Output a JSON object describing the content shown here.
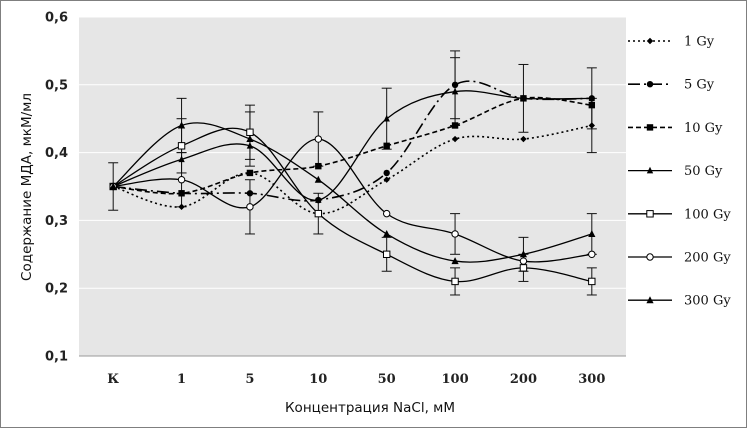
{
  "chart_data": {
    "type": "line",
    "categories": [
      "К",
      "1",
      "5",
      "10",
      "50",
      "100",
      "200",
      "300"
    ],
    "ylabel": "Содержание МДА, мкМ/мл",
    "xlabel": "Концентрация NaCl, мМ",
    "ylim": [
      0.1,
      0.6
    ],
    "yticks": [
      "0,1",
      "0,2",
      "0,3",
      "0,4",
      "0,5",
      "0,6"
    ],
    "grid": "horizontal",
    "legend_position": "right",
    "series": [
      {
        "name": "1 Gy",
        "values": [
          0.35,
          0.32,
          0.37,
          0.31,
          0.36,
          0.42,
          0.42,
          0.44
        ],
        "errors": [
          0,
          0,
          0,
          0,
          0,
          0,
          0,
          0.04
        ],
        "style": "dotted",
        "marker": "diamond"
      },
      {
        "name": "5 Gy",
        "values": [
          0.35,
          0.34,
          0.34,
          0.33,
          0.37,
          0.5,
          0.48,
          0.48
        ],
        "errors": [
          0,
          0,
          0,
          0,
          0,
          0.05,
          0,
          0
        ],
        "style": "dashdot",
        "marker": "circle-filled"
      },
      {
        "name": "10 Gy",
        "values": [
          0.35,
          0.34,
          0.37,
          0.38,
          0.41,
          0.44,
          0.48,
          0.47
        ],
        "errors": [
          0,
          0,
          0,
          0,
          0,
          0,
          0,
          0
        ],
        "style": "dashed",
        "marker": "square-filled"
      },
      {
        "name": "50 Gy",
        "values": [
          0.35,
          0.39,
          0.41,
          0.33,
          0.45,
          0.49,
          0.48,
          0.48
        ],
        "errors": [
          0,
          0,
          0,
          0,
          0.045,
          0.05,
          0.05,
          0.045
        ],
        "style": "solid",
        "marker": "triangle"
      },
      {
        "name": "100 Gy",
        "values": [
          0.35,
          0.41,
          0.43,
          0.31,
          0.25,
          0.21,
          0.23,
          0.21
        ],
        "errors": [
          0.035,
          0.04,
          0.04,
          0.03,
          0.025,
          0.02,
          0.02,
          0.02
        ],
        "style": "solid",
        "marker": "square-open"
      },
      {
        "name": "200 Gy",
        "values": [
          0.35,
          0.36,
          0.32,
          0.42,
          0.31,
          0.28,
          0.24,
          0.25
        ],
        "errors": [
          0,
          0.04,
          0.04,
          0.04,
          0,
          0.03,
          0,
          0
        ],
        "style": "solid",
        "marker": "circle-open"
      },
      {
        "name": "300 Gy",
        "values": [
          0.35,
          0.44,
          0.42,
          0.36,
          0.28,
          0.24,
          0.25,
          0.28
        ],
        "errors": [
          0,
          0.04,
          0.04,
          0,
          0,
          0,
          0.025,
          0.03
        ],
        "style": "solid",
        "marker": "triangle-filled"
      }
    ]
  },
  "colors": {
    "plot_background": "#e6e6e6",
    "gridline": "#ffffff",
    "series_line": "#000000"
  }
}
